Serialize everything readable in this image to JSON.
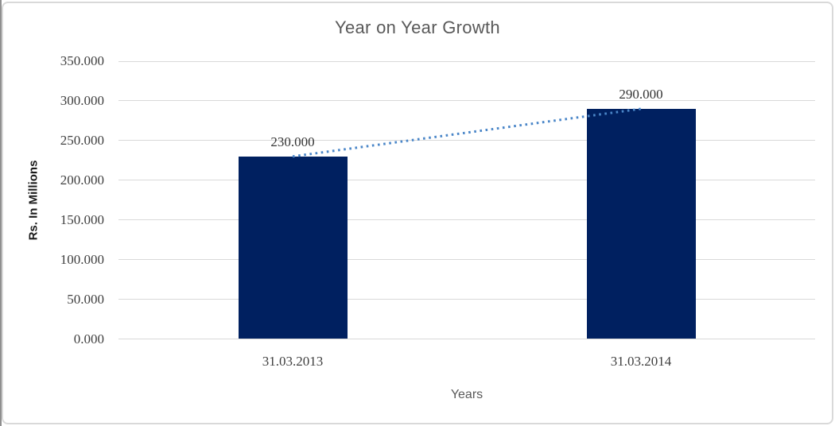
{
  "chart_data": {
    "type": "bar",
    "title": "Year on Year Growth",
    "xlabel": "Years",
    "ylabel": "Rs. In Millions",
    "categories": [
      "31.03.2013",
      "31.03.2014"
    ],
    "values": [
      230,
      290
    ],
    "data_labels": [
      "230.000",
      "290.000"
    ],
    "ylim": [
      0,
      350
    ],
    "ytick_step": 50,
    "ytick_labels": [
      "0.000",
      "50.000",
      "100.000",
      "150.000",
      "200.000",
      "250.000",
      "300.000",
      "350.000"
    ],
    "grid": "horizontal",
    "legend": "none",
    "trendline": {
      "type": "linear",
      "style": "dotted",
      "from_value": 230,
      "to_value": 290
    }
  },
  "colors": {
    "bar": "#002060",
    "trendline": "#4a86c8",
    "gridline": "#d9d9d9",
    "title": "#595959",
    "tick_label": "#3f3f3f",
    "data_label": "#333333",
    "y_axis_title": "#1a1a1a",
    "frame_border": "#d9d9d9",
    "left_edge": "#8f8f8f",
    "background": "#ffffff"
  }
}
